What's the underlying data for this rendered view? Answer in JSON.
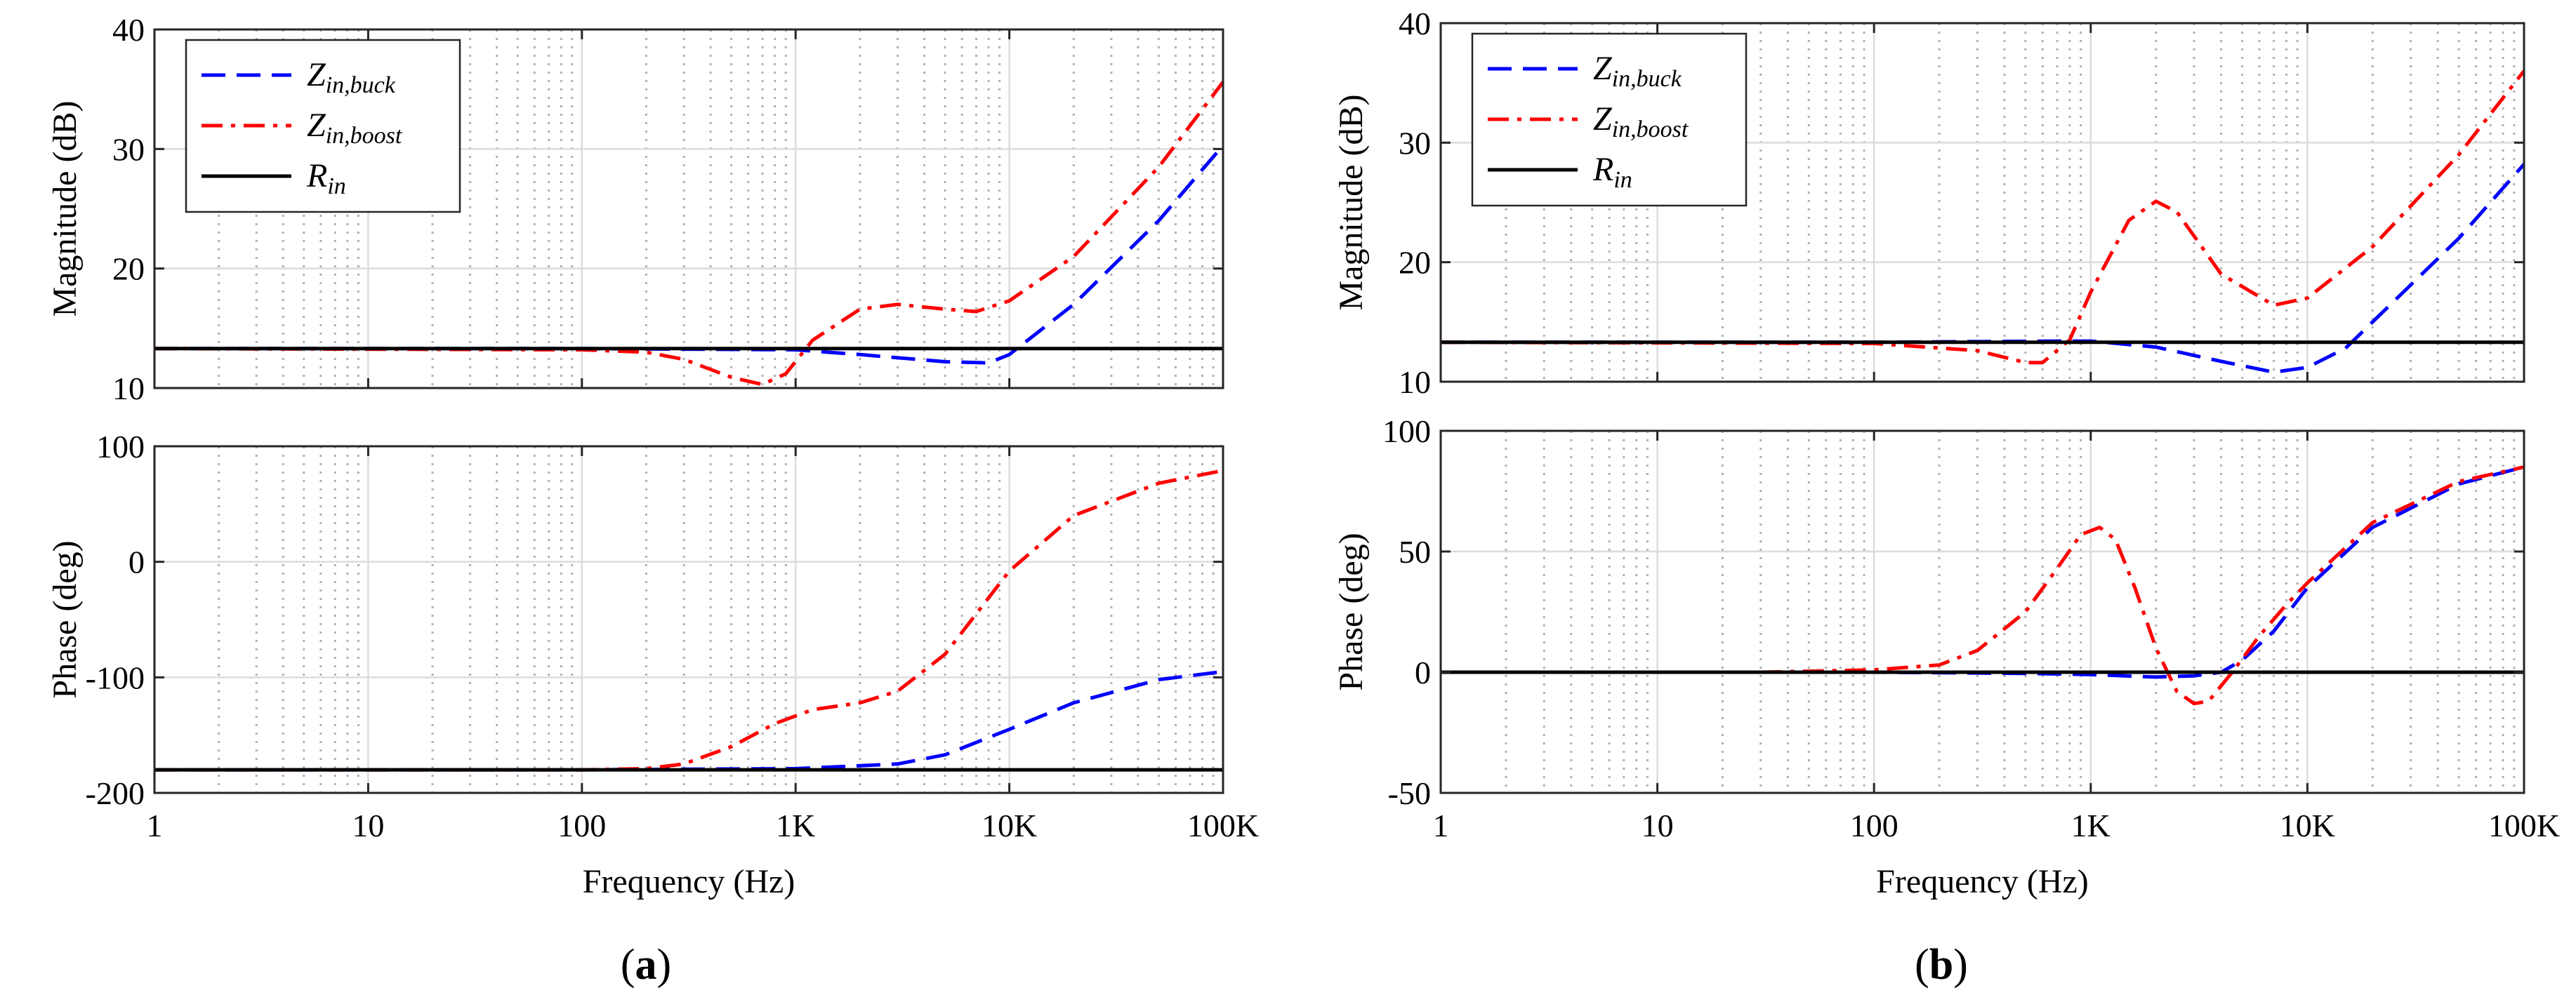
{
  "chart_data": [
    {
      "panel": "a",
      "caption_letter": "a",
      "type": "line",
      "xscale": "log",
      "xlim": [
        1,
        100000
      ],
      "xlabel": "Frequency (Hz)",
      "xticks": [
        1,
        10,
        100,
        1000,
        10000,
        100000
      ],
      "xtick_labels": [
        "1",
        "10",
        "100",
        "1K",
        "10K",
        "100K"
      ],
      "grid": true,
      "subplots": [
        {
          "id": "magnitude",
          "ylabel": "Magnitude (dB)",
          "ylim": [
            10,
            40
          ],
          "yticks": [
            10,
            20,
            30,
            40
          ],
          "ytick_labels": [
            "10",
            "20",
            "30",
            "40"
          ],
          "legend": {
            "location": "top-left",
            "entries": [
              {
                "main": "Z",
                "sub": "in,buck",
                "series": "Zin_buck"
              },
              {
                "main": "Z",
                "sub": "in,boost",
                "series": "Zin_boost"
              },
              {
                "main": "R",
                "sub": "in",
                "series": "Rin"
              }
            ]
          },
          "series": [
            {
              "name": "Zin_buck",
              "label": "Z_in,buck",
              "color": "#0000ff",
              "style": "dashed",
              "x": [
                1,
                100,
                1000,
                2000,
                5000,
                8000,
                10000,
                20000,
                50000,
                100000
              ],
              "y": [
                13.3,
                13.3,
                13.2,
                12.8,
                12.2,
                12.1,
                12.8,
                17,
                24,
                30.3
              ]
            },
            {
              "name": "Zin_boost",
              "label": "Z_in,boost",
              "color": "#ff0000",
              "style": "dashdot",
              "x": [
                1,
                100,
                200,
                300,
                500,
                700,
                900,
                1200,
                2000,
                3000,
                5000,
                7000,
                10000,
                20000,
                50000,
                100000
              ],
              "y": [
                13.3,
                13.2,
                13.0,
                12.4,
                10.9,
                10.3,
                11.2,
                14.0,
                16.6,
                17.0,
                16.6,
                16.4,
                17.3,
                21,
                28.5,
                35.6
              ]
            },
            {
              "name": "Rin",
              "label": "R_in",
              "color": "#000000",
              "style": "solid",
              "x": [
                1,
                100000
              ],
              "y": [
                13.3,
                13.3
              ]
            }
          ]
        },
        {
          "id": "phase",
          "ylabel": "Phase (deg)",
          "ylim": [
            -200,
            100
          ],
          "yticks": [
            -200,
            -100,
            0,
            100
          ],
          "ytick_labels": [
            "-200",
            "-100",
            "0",
            "100"
          ],
          "series": [
            {
              "name": "Zin_buck",
              "color": "#0000ff",
              "style": "dashed",
              "x": [
                1,
                100,
                1000,
                3000,
                5000,
                10000,
                20000,
                50000,
                100000
              ],
              "y": [
                -180,
                -180,
                -179,
                -175,
                -167,
                -145,
                -122,
                -102,
                -95
              ]
            },
            {
              "name": "Zin_boost",
              "color": "#ff0000",
              "style": "dashdot",
              "x": [
                1,
                100,
                200,
                300,
                500,
                800,
                1200,
                2000,
                3000,
                5000,
                10000,
                20000,
                50000,
                100000
              ],
              "y": [
                -180,
                -180,
                -179,
                -175,
                -160,
                -140,
                -128,
                -122,
                -112,
                -80,
                -8,
                40,
                68,
                79
              ]
            },
            {
              "name": "Rin",
              "color": "#000000",
              "style": "solid",
              "x": [
                1,
                100000
              ],
              "y": [
                -180,
                -180
              ]
            }
          ]
        }
      ]
    },
    {
      "panel": "b",
      "caption_letter": "b",
      "type": "line",
      "xscale": "log",
      "xlim": [
        1,
        100000
      ],
      "xlabel": "Frequency (Hz)",
      "xticks": [
        1,
        10,
        100,
        1000,
        10000,
        100000
      ],
      "xtick_labels": [
        "1",
        "10",
        "100",
        "1K",
        "10K",
        "100K"
      ],
      "grid": true,
      "subplots": [
        {
          "id": "magnitude",
          "ylabel": "Magnitude (dB)",
          "ylim": [
            10,
            40
          ],
          "yticks": [
            10,
            20,
            30,
            40
          ],
          "ytick_labels": [
            "10",
            "20",
            "30",
            "40"
          ],
          "legend": {
            "location": "top-left",
            "entries": [
              {
                "main": "Z",
                "sub": "in,buck",
                "series": "Zin_buck"
              },
              {
                "main": "Z",
                "sub": "in,boost",
                "series": "Zin_boost"
              },
              {
                "main": "R",
                "sub": "in",
                "series": "Rin"
              }
            ]
          },
          "series": [
            {
              "name": "Zin_buck",
              "label": "Z_in,buck",
              "color": "#0000ff",
              "style": "dashed",
              "x": [
                1,
                100,
                700,
                1000,
                2000,
                4000,
                7000,
                10000,
                15000,
                20000,
                50000,
                100000
              ],
              "y": [
                13.3,
                13.3,
                13.4,
                13.4,
                12.9,
                11.7,
                10.8,
                11.2,
                12.8,
                15,
                22,
                28.2
              ]
            },
            {
              "name": "Zin_boost",
              "label": "Z_in,boost",
              "color": "#ff0000",
              "style": "dashdot",
              "x": [
                1,
                100,
                300,
                500,
                600,
                800,
                1000,
                1500,
                2000,
                2500,
                4000,
                7000,
                10000,
                20000,
                50000,
                100000
              ],
              "y": [
                13.3,
                13.2,
                12.6,
                11.6,
                11.6,
                13.5,
                17.5,
                23.5,
                25.1,
                24.2,
                19,
                16.4,
                17.0,
                21.3,
                29,
                36
              ]
            },
            {
              "name": "Rin",
              "label": "R_in",
              "color": "#000000",
              "style": "solid",
              "x": [
                1,
                100000
              ],
              "y": [
                13.3,
                13.3
              ]
            }
          ]
        },
        {
          "id": "phase",
          "ylabel": "Phase (deg)",
          "ylim": [
            -50,
            100
          ],
          "yticks": [
            -50,
            0,
            50,
            100
          ],
          "ytick_labels": [
            "-50",
            "0",
            "50",
            "100"
          ],
          "series": [
            {
              "name": "Zin_buck",
              "color": "#0000ff",
              "style": "dashed",
              "x": [
                1,
                100,
                500,
                1000,
                2000,
                3000,
                4000,
                5000,
                7000,
                10000,
                20000,
                50000,
                100000
              ],
              "y": [
                0,
                0,
                -0.5,
                -1,
                -2,
                -1.5,
                0,
                5,
                17,
                35,
                60,
                78,
                85
              ]
            },
            {
              "name": "Zin_boost",
              "color": "#ff0000",
              "style": "dashdot",
              "x": [
                30,
                100,
                200,
                300,
                500,
                700,
                900,
                1100,
                1300,
                1600,
                2000,
                2500,
                3000,
                3500,
                4500,
                6000,
                8000,
                10000,
                20000,
                50000,
                100000
              ],
              "y": [
                0,
                1,
                3,
                9,
                25,
                43,
                57,
                60,
                55,
                35,
                10,
                -8,
                -13,
                -12,
                0,
                15,
                28,
                37,
                62,
                79,
                85
              ]
            },
            {
              "name": "Rin",
              "color": "#000000",
              "style": "solid",
              "x": [
                1,
                100000
              ],
              "y": [
                0,
                0
              ]
            }
          ]
        }
      ]
    }
  ]
}
